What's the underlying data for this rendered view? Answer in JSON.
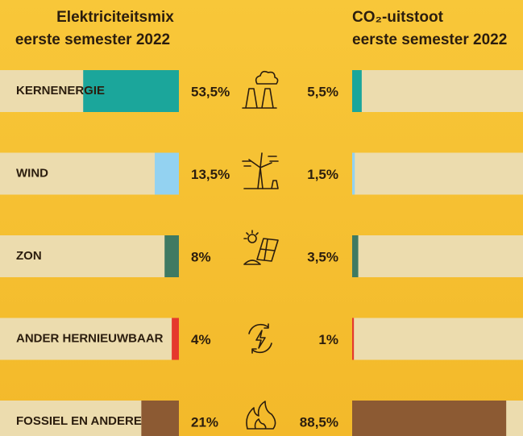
{
  "chart_data": [
    {
      "type": "bar",
      "title": "Elektriciteitsmix",
      "subtitle": "eerste semester 2022",
      "categories": [
        "KERNENERGIE",
        "WIND",
        "ZON",
        "ANDER HERNIEUWBAAR",
        "FOSSIEL EN ANDERE"
      ],
      "values": [
        53.5,
        13.5,
        8,
        4,
        21
      ],
      "value_labels": [
        "53,5%",
        "13,5%",
        "8%",
        "4%",
        "21%"
      ],
      "colors": [
        "#1ba69b",
        "#93d2f1",
        "#3f7a62",
        "#e5392d",
        "#8c5a33"
      ],
      "xlim": [
        0,
        100
      ]
    },
    {
      "type": "bar",
      "title": "CO₂-uitstoot",
      "subtitle": "eerste semester 2022",
      "values": [
        5.5,
        1.5,
        3.5,
        1,
        88.5
      ],
      "value_labels": [
        "5,5%",
        "1,5%",
        "3,5%",
        "1%",
        "88,5%"
      ],
      "colors": [
        "#1ba69b",
        "#93d2f1",
        "#3f7a62",
        "#e5392d",
        "#8c5a33"
      ],
      "xlim": [
        0,
        100
      ]
    }
  ]
}
